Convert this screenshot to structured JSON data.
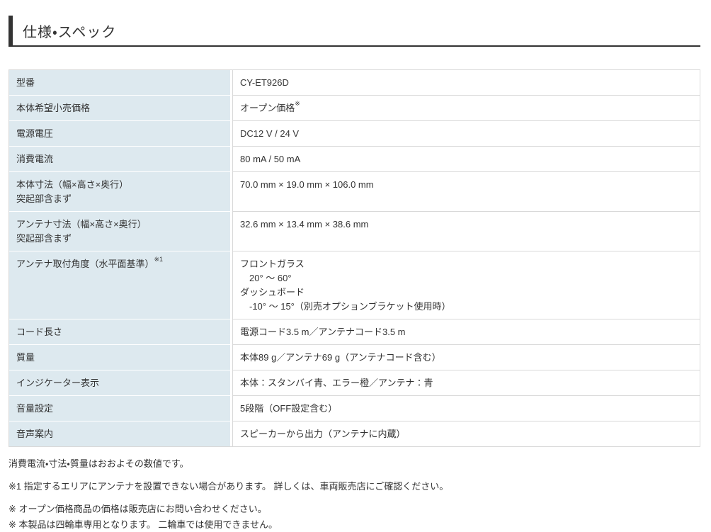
{
  "header": {
    "title": "仕様・スペック"
  },
  "colors": {
    "accent_bar": "#333333",
    "label_cell_bg": "#dde9ef",
    "table_border": "#d9d9d9",
    "text": "#333333"
  },
  "spec_table": {
    "rows": [
      {
        "label": [
          "型番"
        ],
        "value": [
          "CY-ET926D"
        ]
      },
      {
        "label": [
          "本体希望小売価格"
        ],
        "value": [
          {
            "text": "オープン価格",
            "sup": "※"
          }
        ]
      },
      {
        "label": [
          "電源電圧"
        ],
        "value": [
          "DC12 V / 24 V"
        ]
      },
      {
        "label": [
          "消費電流"
        ],
        "value": [
          "80 mA / 50 mA"
        ]
      },
      {
        "label": [
          "本体寸法（幅×高さ×奥行）",
          "突起部含まず"
        ],
        "value": [
          "70.0 mm × 19.0 mm × 106.0 mm"
        ]
      },
      {
        "label": [
          "アンテナ寸法（幅×高さ×奥行）",
          "突起部含まず"
        ],
        "value": [
          "32.6 mm × 13.4 mm × 38.6 mm"
        ]
      },
      {
        "label": [
          {
            "text": "アンテナ取付角度（水平面基準）",
            "sup": "※1"
          }
        ],
        "value": [
          "フロントガラス",
          {
            "text": "20° ～ 60°",
            "indent": true
          },
          "ダッシュボード",
          {
            "text": "-10° ～ 15°（別売オプションブラケット使用時）",
            "indent": true
          }
        ]
      },
      {
        "label": [
          "コード長さ"
        ],
        "value": [
          "電源コード3.5 m／アンテナコード3.5 m"
        ]
      },
      {
        "label": [
          "質量"
        ],
        "value": [
          "本体89 g／アンテナ69 g（アンテナコード含む）"
        ]
      },
      {
        "label": [
          "インジケーター表示"
        ],
        "value": [
          "本体：スタンバイ青、エラー橙／アンテナ：青"
        ]
      },
      {
        "label": [
          "音量設定"
        ],
        "value": [
          "5段階（OFF設定含む）"
        ]
      },
      {
        "label": [
          "音声案内"
        ],
        "value": [
          "スピーカーから出力（アンテナに内蔵）"
        ]
      }
    ]
  },
  "footnotes": [
    "消費電流・寸法・質量はおおよその数値です。",
    "※1 指定するエリアにアンテナを設置できない場合があります。 詳しくは、車両販売店にご確認ください。",
    "※ オープン価格商品の価格は販売店にお問い合わせください。",
    "※ 本製品は四輪車専用となります。 二輪車では使用できません。"
  ]
}
